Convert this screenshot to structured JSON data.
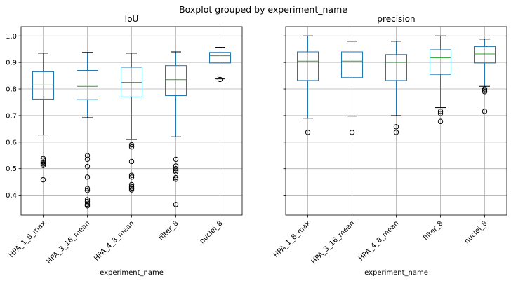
{
  "suptitle": "Boxplot grouped by experiment_name",
  "chart_data": [
    {
      "type": "boxplot",
      "title": "IoU",
      "xlabel": "experiment_name",
      "ylabel": "",
      "ylim": [
        0.325,
        1.035
      ],
      "yticks": [
        "0.4",
        "0.5",
        "0.6",
        "0.7",
        "0.8",
        "0.9",
        "1.0"
      ],
      "categories": [
        "HPA_1_8_max",
        "HPA_3_16_mean",
        "HPA_4_8_mean",
        "filter_8",
        "nuclei_8"
      ],
      "grid": true,
      "boxes": [
        {
          "whisker_low": 0.627,
          "q1": 0.762,
          "median": 0.815,
          "q3": 0.865,
          "whisker_high": 0.935,
          "fliers": [
            0.538,
            0.532,
            0.525,
            0.518,
            0.512,
            0.458
          ]
        },
        {
          "whisker_low": 0.692,
          "q1": 0.76,
          "median": 0.81,
          "q3": 0.87,
          "whisker_high": 0.938,
          "fliers": [
            0.549,
            0.535,
            0.508,
            0.468,
            0.425,
            0.418,
            0.383,
            0.376,
            0.366,
            0.36
          ]
        },
        {
          "whisker_low": 0.61,
          "q1": 0.77,
          "median": 0.825,
          "q3": 0.882,
          "whisker_high": 0.935,
          "fliers": [
            0.59,
            0.582,
            0.527,
            0.475,
            0.468,
            0.44,
            0.432,
            0.427,
            0.42
          ]
        },
        {
          "whisker_low": 0.62,
          "q1": 0.775,
          "median": 0.835,
          "q3": 0.888,
          "whisker_high": 0.94,
          "fliers": [
            0.535,
            0.51,
            0.5,
            0.493,
            0.488,
            0.466,
            0.46,
            0.365
          ]
        },
        {
          "whisker_low": 0.838,
          "q1": 0.898,
          "median": 0.925,
          "q3": 0.938,
          "whisker_high": 0.957,
          "fliers": [
            0.836
          ]
        }
      ]
    },
    {
      "type": "boxplot",
      "title": "precision",
      "xlabel": "experiment_name",
      "ylabel": "",
      "ylim": [
        0.325,
        1.035
      ],
      "yticks": [],
      "categories": [
        "HPA_1_8_max",
        "HPA_3_16_mean",
        "HPA_4_8_mean",
        "filter_8",
        "nuclei_8"
      ],
      "grid": true,
      "boxes": [
        {
          "whisker_low": 0.69,
          "q1": 0.832,
          "median": 0.905,
          "q3": 0.94,
          "whisker_high": 1.0,
          "fliers": [
            0.637
          ]
        },
        {
          "whisker_low": 0.698,
          "q1": 0.843,
          "median": 0.905,
          "q3": 0.94,
          "whisker_high": 0.98,
          "fliers": [
            0.637
          ]
        },
        {
          "whisker_low": 0.7,
          "q1": 0.832,
          "median": 0.9,
          "q3": 0.93,
          "whisker_high": 0.98,
          "fliers": [
            0.658,
            0.637
          ]
        },
        {
          "whisker_low": 0.73,
          "q1": 0.855,
          "median": 0.918,
          "q3": 0.948,
          "whisker_high": 1.0,
          "fliers": [
            0.716,
            0.708,
            0.678
          ]
        },
        {
          "whisker_low": 0.81,
          "q1": 0.898,
          "median": 0.932,
          "q3": 0.96,
          "whisker_high": 0.988,
          "fliers": [
            0.8,
            0.795,
            0.79,
            0.716
          ]
        }
      ]
    }
  ],
  "colors": {
    "box": "#1f77b4",
    "median": "#2ca02c",
    "grid": "#b0b0b0",
    "flier": "#000000"
  }
}
